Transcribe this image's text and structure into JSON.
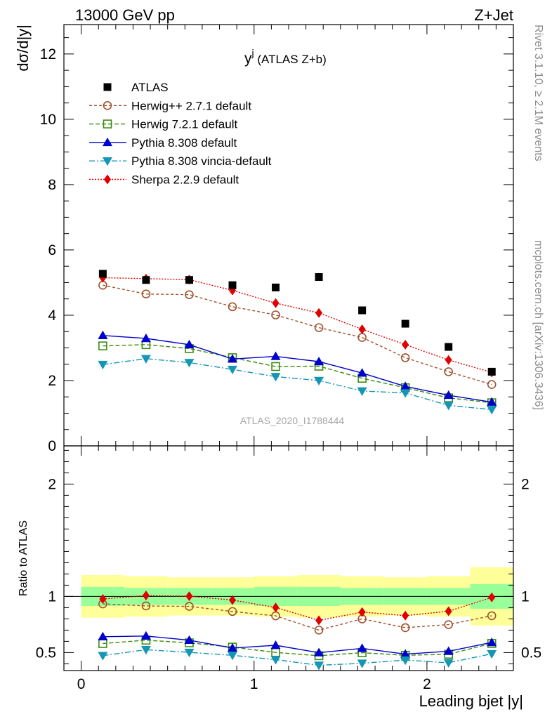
{
  "header": {
    "left": "13000 GeV pp",
    "right": "Z+Jet"
  },
  "side_labels": {
    "top": "Rivet 3.1.10, ≥ 2.1M events",
    "bottom": "mcplots.cern.ch [arXiv:1306.3436]"
  },
  "chart_data": {
    "type": "line",
    "title_main": "y",
    "title_sup": "j",
    "title_rest": " (ATLAS Z+b)",
    "watermark": "ATLAS_2020_I1788444",
    "xlabel": "Leading bjet |y|",
    "ylabel": "dσ/d|y|",
    "ratio_ylabel": "Ratio to ATLAS",
    "xlim": [
      -0.1,
      2.5
    ],
    "ylim": [
      0,
      12.9
    ],
    "ratio_ylim": [
      0.34,
      2.34
    ],
    "x_ticks": [
      "0",
      "1",
      "2"
    ],
    "y_ticks": [
      "0",
      "2",
      "4",
      "6",
      "8",
      "10",
      "12"
    ],
    "ratio_y_ticks": [
      "0.5",
      "1",
      "2"
    ],
    "bins": [
      0,
      0.25,
      0.5,
      0.75,
      1.0,
      1.25,
      1.5,
      1.75,
      2.0,
      2.25,
      2.5
    ],
    "x": [
      0.125,
      0.375,
      0.625,
      0.875,
      1.125,
      1.375,
      1.625,
      1.875,
      2.125,
      2.375
    ],
    "data": {
      "name": "ATLAS",
      "values": [
        5.27,
        5.08,
        5.08,
        4.92,
        4.85,
        5.17,
        4.15,
        3.74,
        3.03,
        2.27
      ],
      "color": "#000000"
    },
    "band_green_half": [
      0.085,
      0.075,
      0.075,
      0.075,
      0.085,
      0.085,
      0.075,
      0.075,
      0.075,
      0.11
    ],
    "band_yellow_half": [
      0.19,
      0.18,
      0.17,
      0.17,
      0.18,
      0.19,
      0.18,
      0.17,
      0.18,
      0.26
    ],
    "series": [
      {
        "name": "Herwig++ 2.7.1 default",
        "color": "#a0522d",
        "marker": "circle-open",
        "dash": "4,3",
        "values": [
          4.92,
          4.65,
          4.63,
          4.26,
          4.01,
          3.62,
          3.32,
          2.7,
          2.27,
          1.88
        ]
      },
      {
        "name": "Herwig 7.2.1 default",
        "color": "#3b8c0e",
        "marker": "square-open",
        "dash": "6,3",
        "values": [
          3.06,
          3.1,
          2.98,
          2.7,
          2.43,
          2.44,
          2.07,
          1.78,
          1.47,
          1.32
        ]
      },
      {
        "name": "Pythia 8.308 default",
        "color": "#0000cc",
        "marker": "triangle-up",
        "dash": "",
        "values": [
          3.38,
          3.29,
          3.1,
          2.66,
          2.74,
          2.58,
          2.23,
          1.82,
          1.55,
          1.34
        ]
      },
      {
        "name": "Pythia 8.308 vincia-default",
        "color": "#1596b4",
        "marker": "triangle-down",
        "dash": "8,3,2,3",
        "values": [
          2.49,
          2.67,
          2.55,
          2.34,
          2.12,
          2.0,
          1.68,
          1.62,
          1.24,
          1.11
        ]
      },
      {
        "name": "Sherpa 2.2.9 default",
        "color": "#e00000",
        "marker": "diamond",
        "dash": "2,2",
        "values": [
          5.15,
          5.12,
          5.09,
          4.76,
          4.37,
          4.07,
          3.57,
          3.1,
          2.63,
          2.25
        ]
      }
    ]
  }
}
